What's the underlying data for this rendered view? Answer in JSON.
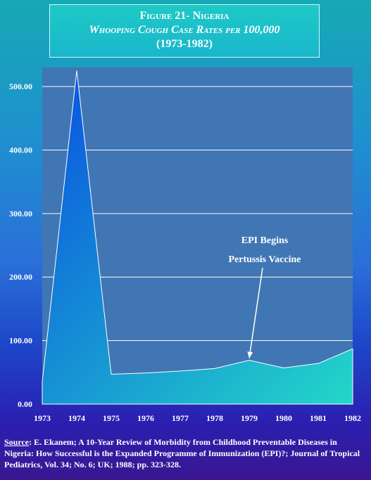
{
  "title": {
    "line1": "Figure 21- Nigeria",
    "line2": "Whooping Cough Case Rates per 100,000",
    "line3": "(1973-1982)"
  },
  "chart_data": {
    "type": "area",
    "x": [
      "1973",
      "1974",
      "1975",
      "1976",
      "1977",
      "1978",
      "1979",
      "1980",
      "1981",
      "1982"
    ],
    "values": [
      35,
      525,
      47,
      49,
      52,
      56,
      69,
      57,
      64,
      87
    ],
    "ylim": [
      0,
      530
    ],
    "yticks": [
      "0.00",
      "100.00",
      "200.00",
      "300.00",
      "400.00",
      "500.00"
    ],
    "ytick_values": [
      0,
      100,
      200,
      300,
      400,
      500
    ],
    "grid": true,
    "annotation": {
      "line1": "EPI Begins",
      "line2": "Pertussis Vaccine",
      "x": "1979",
      "y": 69
    },
    "colors": {
      "plot_bg": "#4076b4",
      "fill_top": "#0a4fe0",
      "fill_bottom": "#23d7c8",
      "grid": "#ffffff"
    }
  },
  "footer": {
    "source_label": "Source",
    "source_text": ": E. Ekanem; A 10-Year Review of Morbidity from Childhood Preventable Diseases in Nigeria: How Successful is the Expanded Programme of Immunization (EPI)?; Journal of Tropical Pediatrics, Vol. 34; No. 6;  UK; 1988; pp. 323-328."
  }
}
